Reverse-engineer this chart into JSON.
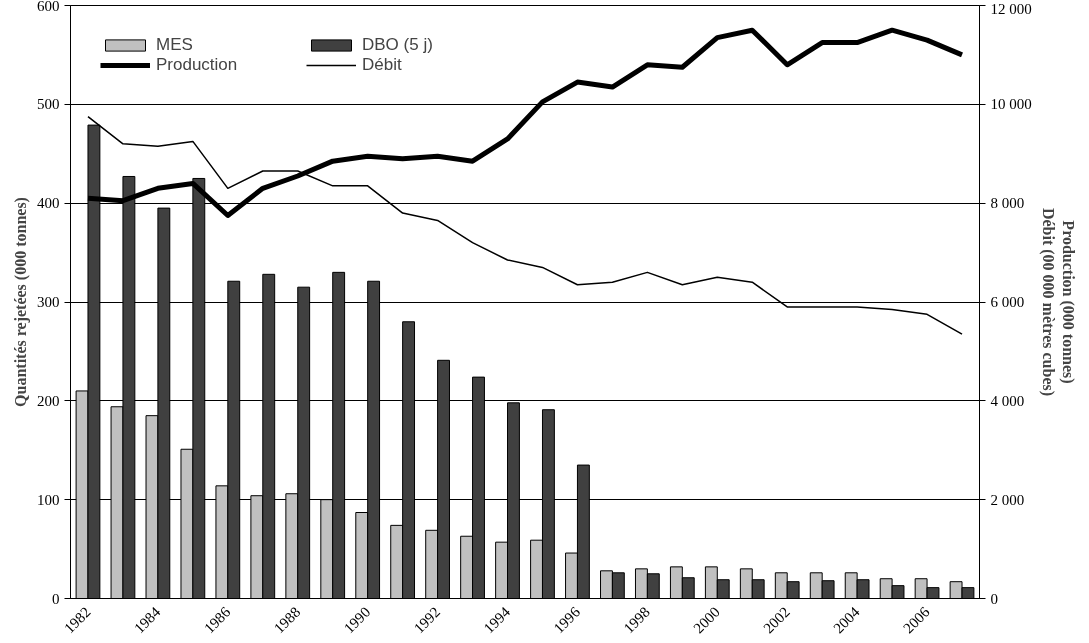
{
  "chart_data": {
    "type": "bar",
    "categories": [
      "1982",
      null,
      "1984",
      null,
      "1986",
      null,
      "1988",
      null,
      "1990",
      null,
      "1992",
      null,
      "1994",
      null,
      "1996",
      null,
      "1998",
      null,
      "2000",
      null,
      "2002",
      null,
      "2004",
      null,
      "2006",
      null
    ],
    "series": [
      {
        "name": "MES",
        "color": "#c0c0c0",
        "values": [
          210,
          194,
          185,
          151,
          114,
          104,
          106,
          100,
          87,
          74,
          69,
          63,
          57,
          59,
          46,
          28,
          30,
          32,
          32,
          30,
          26,
          26,
          26,
          20,
          20,
          17
        ]
      },
      {
        "name": "DBO (5 j)",
        "color": "#404040",
        "values": [
          479,
          427,
          395,
          425,
          321,
          328,
          315,
          330,
          321,
          280,
          241,
          224,
          198,
          191,
          135,
          26,
          25,
          21,
          19,
          19,
          17,
          18,
          19,
          13,
          11,
          11
        ]
      },
      {
        "name": "Production",
        "type": "line",
        "axis": "y2",
        "color": "#000000",
        "values": [
          8100,
          8050,
          8300,
          8400,
          7750,
          8300,
          8550,
          8850,
          8950,
          8900,
          8950,
          8850,
          9300,
          10050,
          10450,
          10350,
          10800,
          10750,
          11350,
          11500,
          10800,
          11250,
          11250,
          11500,
          11300,
          11000
        ]
      },
      {
        "name": "Débit",
        "type": "line",
        "axis": "y2",
        "color": "#000000",
        "values": [
          9750,
          9200,
          9150,
          9250,
          8300,
          8650,
          8650,
          8350,
          8350,
          7800,
          7650,
          7200,
          6850,
          6700,
          6350,
          6400,
          6600,
          6350,
          6500,
          6400,
          5900,
          5900,
          5900,
          5850,
          5750,
          5350
        ]
      }
    ],
    "ylabel": "Quantités rejetées (000 tonnes)",
    "y2label": "Production (000 tonnes)\nDébit (00 000 mètres cubes)",
    "ylim": [
      0,
      600
    ],
    "yticks": [
      0,
      100,
      200,
      300,
      400,
      500,
      600
    ],
    "y2lim": [
      0,
      12000
    ],
    "y2ticks": [
      0,
      {
        "value": 2000,
        "label": "2 000"
      },
      {
        "value": 4000,
        "label": "4 000"
      },
      {
        "value": 6000,
        "label": "6 000"
      },
      {
        "value": 8000,
        "label": "8 000"
      },
      {
        "value": 10000,
        "label": "10 000"
      },
      {
        "value": 12000,
        "label": "12 000"
      }
    ],
    "grid": "y",
    "legend": "top left",
    "marker": "none",
    "line_style": "solid"
  }
}
